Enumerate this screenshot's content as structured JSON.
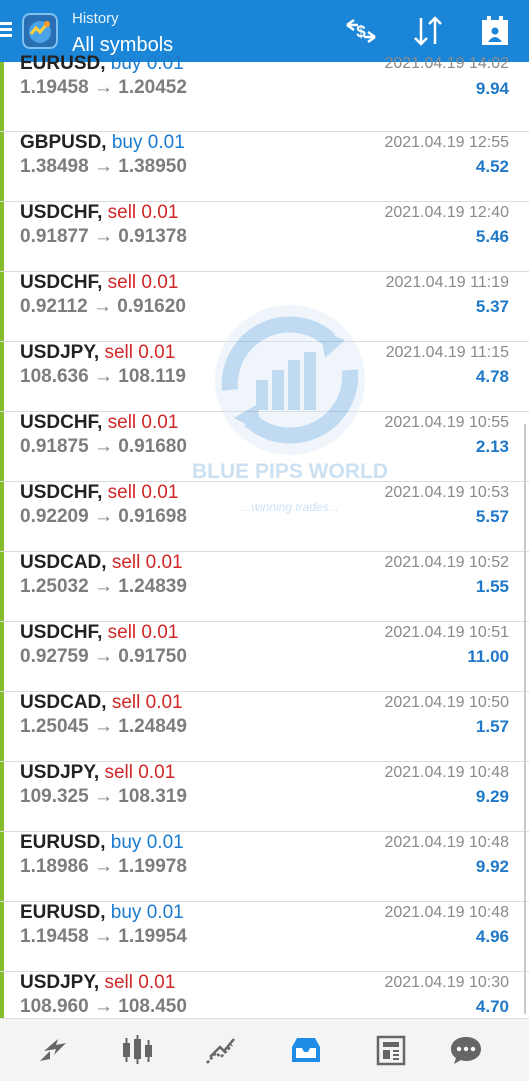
{
  "header": {
    "section": "History",
    "filter": "All symbols"
  },
  "colors": {
    "appbar": "#1b86d8",
    "buy": "#1a7bd0",
    "sell": "#d12727",
    "profit": "#1f79c8",
    "row_marker": "#86bd2a"
  },
  "watermark": {
    "title": "BLUE PIPS WORLD",
    "tagline": "...winning trades..."
  },
  "trades": [
    {
      "symbol": "EURUSD",
      "side": "buy",
      "volume": "0.01",
      "open": "1.19458",
      "close": "1.20452",
      "time": "2021.04.19 14:02",
      "profit": "9.94"
    },
    {
      "symbol": "GBPUSD",
      "side": "buy",
      "volume": "0.01",
      "open": "1.38498",
      "close": "1.38950",
      "time": "2021.04.19 12:55",
      "profit": "4.52"
    },
    {
      "symbol": "USDCHF",
      "side": "sell",
      "volume": "0.01",
      "open": "0.91877",
      "close": "0.91378",
      "time": "2021.04.19 12:40",
      "profit": "5.46"
    },
    {
      "symbol": "USDCHF",
      "side": "sell",
      "volume": "0.01",
      "open": "0.92112",
      "close": "0.91620",
      "time": "2021.04.19 11:19",
      "profit": "5.37"
    },
    {
      "symbol": "USDJPY",
      "side": "sell",
      "volume": "0.01",
      "open": "108.636",
      "close": "108.119",
      "time": "2021.04.19 11:15",
      "profit": "4.78"
    },
    {
      "symbol": "USDCHF",
      "side": "sell",
      "volume": "0.01",
      "open": "0.91875",
      "close": "0.91680",
      "time": "2021.04.19 10:55",
      "profit": "2.13"
    },
    {
      "symbol": "USDCHF",
      "side": "sell",
      "volume": "0.01",
      "open": "0.92209",
      "close": "0.91698",
      "time": "2021.04.19 10:53",
      "profit": "5.57"
    },
    {
      "symbol": "USDCAD",
      "side": "sell",
      "volume": "0.01",
      "open": "1.25032",
      "close": "1.24839",
      "time": "2021.04.19 10:52",
      "profit": "1.55"
    },
    {
      "symbol": "USDCHF",
      "side": "sell",
      "volume": "0.01",
      "open": "0.92759",
      "close": "0.91750",
      "time": "2021.04.19 10:51",
      "profit": "11.00"
    },
    {
      "symbol": "USDCAD",
      "side": "sell",
      "volume": "0.01",
      "open": "1.25045",
      "close": "1.24849",
      "time": "2021.04.19 10:50",
      "profit": "1.57"
    },
    {
      "symbol": "USDJPY",
      "side": "sell",
      "volume": "0.01",
      "open": "109.325",
      "close": "108.319",
      "time": "2021.04.19 10:48",
      "profit": "9.29"
    },
    {
      "symbol": "EURUSD",
      "side": "buy",
      "volume": "0.01",
      "open": "1.18986",
      "close": "1.19978",
      "time": "2021.04.19 10:48",
      "profit": "9.92"
    },
    {
      "symbol": "EURUSD",
      "side": "buy",
      "volume": "0.01",
      "open": "1.19458",
      "close": "1.19954",
      "time": "2021.04.19 10:48",
      "profit": "4.96"
    },
    {
      "symbol": "USDJPY",
      "side": "sell",
      "volume": "0.01",
      "open": "108.960",
      "close": "108.450",
      "time": "2021.04.19 10:30",
      "profit": "4.70"
    }
  ],
  "toolbar_icons": [
    "deposit-withdrawal-icon",
    "sort-icon",
    "calendar-icon"
  ],
  "nav_icons": [
    "quotes-icon",
    "chart-icon",
    "trade-icon",
    "history-icon",
    "news-icon",
    "messages-icon"
  ]
}
